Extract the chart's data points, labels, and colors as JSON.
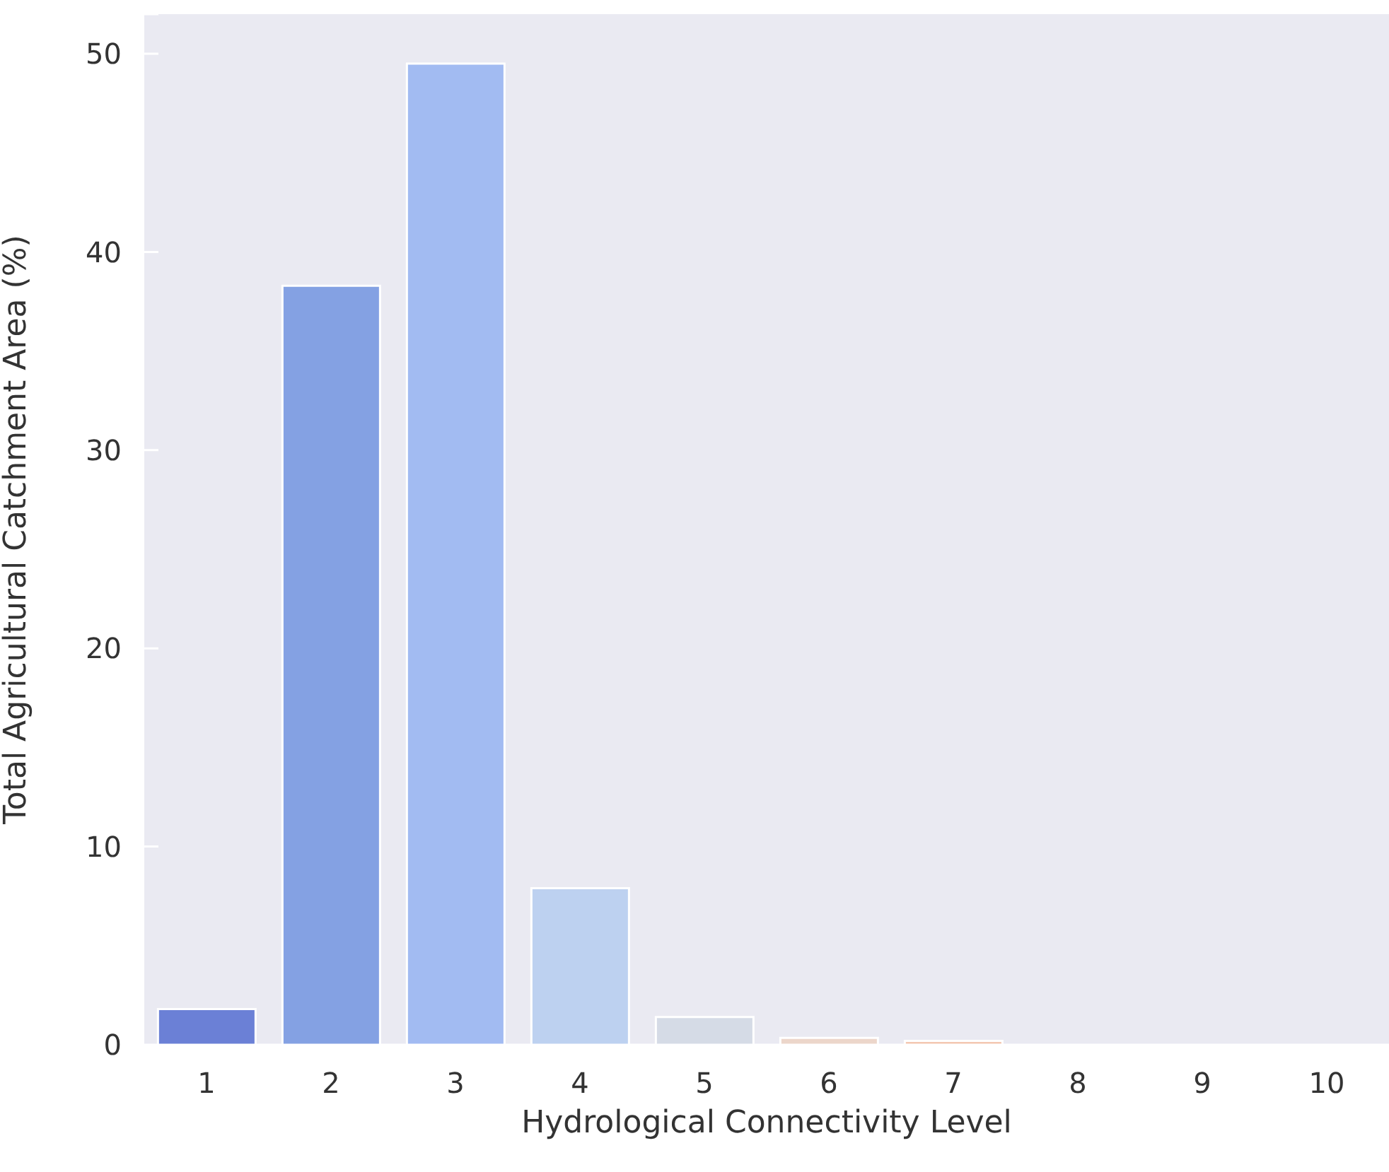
{
  "chart_data": {
    "type": "bar",
    "xlabel": "Hydrological Connectivity Level",
    "ylabel": "Total Agricultural Catchment Area (%)",
    "categories": [
      "1",
      "2",
      "3",
      "4",
      "5",
      "6",
      "7",
      "8",
      "9",
      "10"
    ],
    "values": [
      1.8,
      38.3,
      49.5,
      7.9,
      1.4,
      0.35,
      0.2,
      null,
      null,
      null
    ],
    "colors": [
      "#6b80d6",
      "#84a1e3",
      "#a2bbf2",
      "#bdd1f0",
      "#d5dbe6",
      "#ecd6ca",
      "#f3c7b1",
      "#f1b097",
      "#e9906f",
      "#dd6b52"
    ],
    "ylim": [
      0,
      52
    ],
    "yticks": [
      0,
      10,
      20,
      30,
      40,
      50
    ],
    "grid": "y"
  }
}
